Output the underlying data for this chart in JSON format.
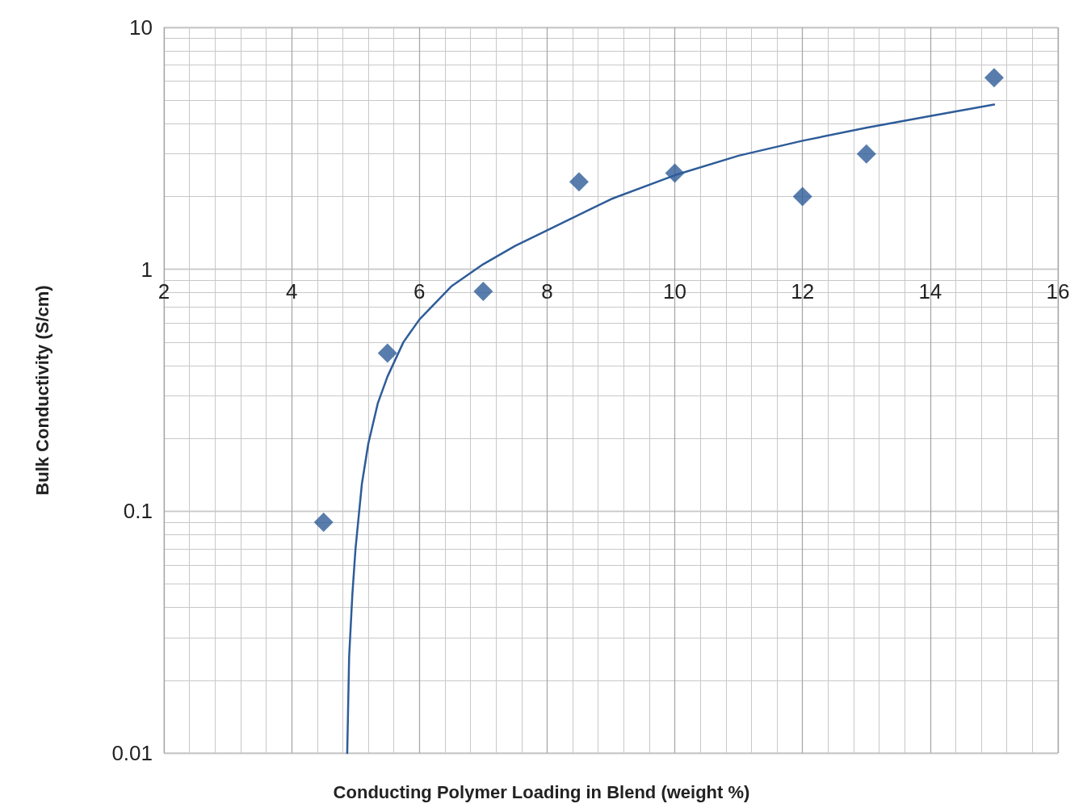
{
  "chart_data": {
    "type": "scatter",
    "xlabel": "Conducting Polymer Loading in Blend (weight %)",
    "ylabel": "Bulk Conductivity (S/cm)",
    "log": "y",
    "grid": true,
    "marker": "diamond",
    "xlim": [
      2,
      16
    ],
    "xticks": [
      2,
      4,
      6,
      8,
      10,
      12,
      14,
      16
    ],
    "ylim": [
      0.01,
      10
    ],
    "yticks": [
      0.01,
      0.1,
      1,
      10
    ],
    "series": [
      {
        "color": "#2e5c99",
        "x": [
          4.5,
          5.5,
          7,
          8.5,
          10,
          12,
          13,
          15
        ],
        "values": [
          0.09,
          0.45,
          0.81,
          2.3,
          2.5,
          2.0,
          3.0,
          6.2
        ]
      },
      {
        "type": "line",
        "color": "#2e5c99",
        "marker": "none",
        "line_style": "solid",
        "x": [
          4.87,
          4.9,
          4.95,
          5.0,
          5.1,
          5.2,
          5.35,
          5.5,
          5.75,
          6,
          6.5,
          7,
          7.5,
          8,
          9,
          10,
          11,
          12,
          13,
          14,
          15
        ],
        "values": [
          0.01,
          0.025,
          0.045,
          0.07,
          0.13,
          0.19,
          0.28,
          0.36,
          0.5,
          0.62,
          0.85,
          1.05,
          1.25,
          1.45,
          1.95,
          2.45,
          2.95,
          3.4,
          3.85,
          4.3,
          4.8
        ]
      }
    ]
  }
}
